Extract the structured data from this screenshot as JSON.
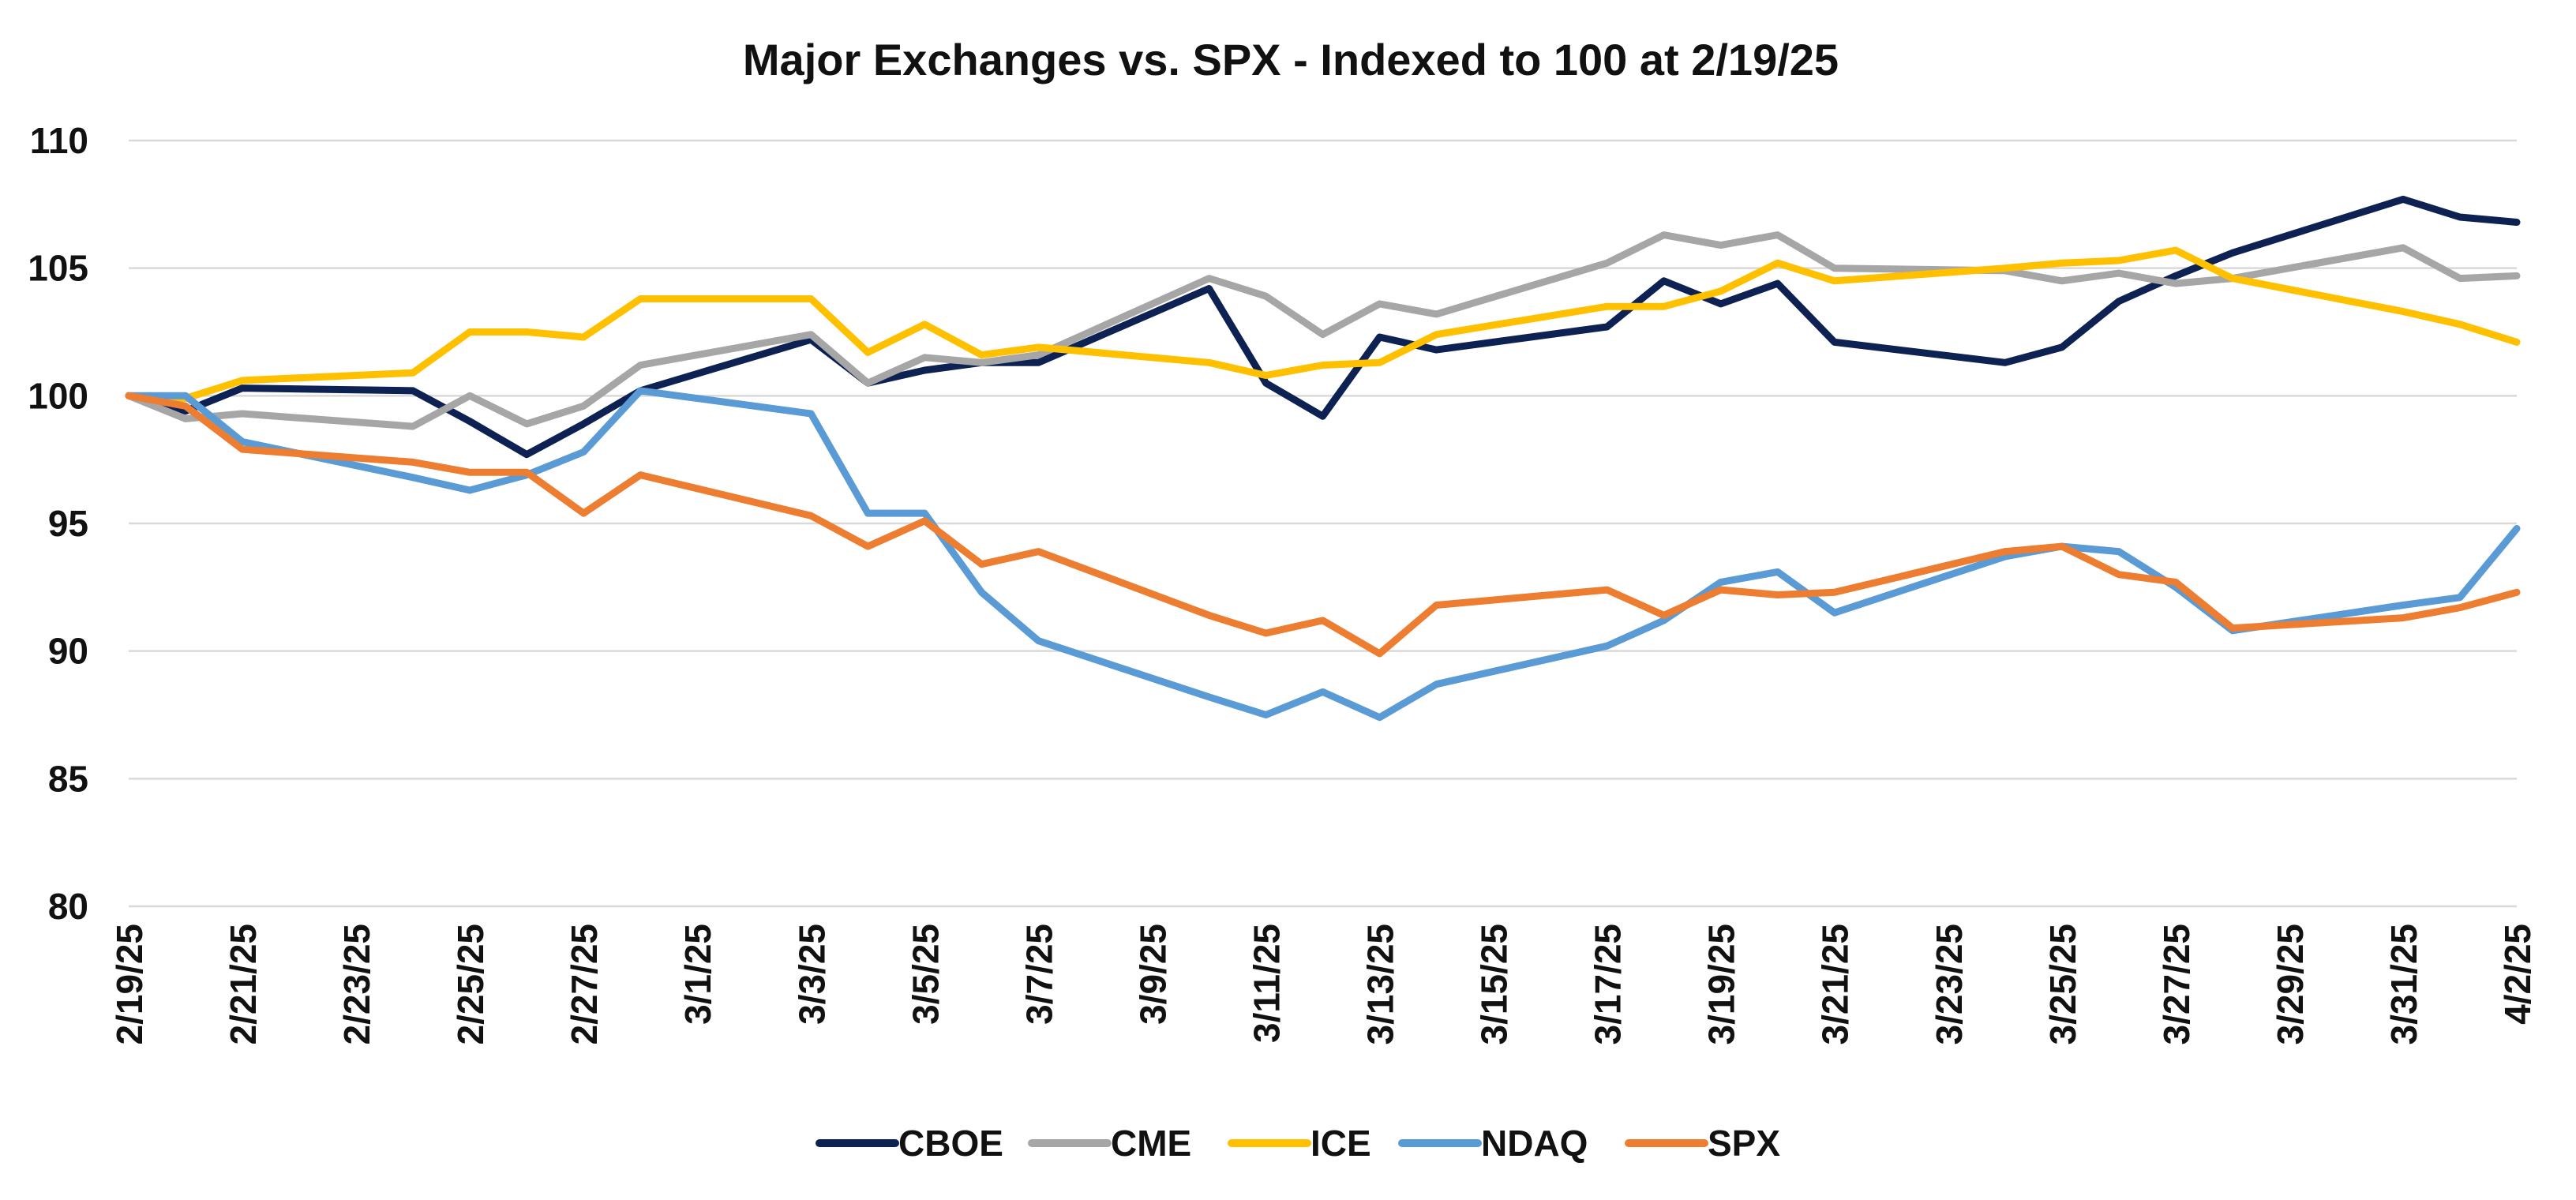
{
  "chart_data": {
    "type": "line",
    "title": "Major Exchanges vs. SPX - Indexed to 100 at 2/19/25",
    "xlabel": "",
    "ylabel": "",
    "ylim": [
      80,
      110
    ],
    "y_ticks": [
      80,
      85,
      90,
      95,
      100,
      105,
      110
    ],
    "grid": true,
    "legend_position": "bottom",
    "x_tick_labels": [
      "2/19/25",
      "2/21/25",
      "2/23/25",
      "2/25/25",
      "2/27/25",
      "3/1/25",
      "3/3/25",
      "3/5/25",
      "3/7/25",
      "3/9/25",
      "3/11/25",
      "3/13/25",
      "3/15/25",
      "3/17/25",
      "3/19/25",
      "3/21/25",
      "3/23/25",
      "3/25/25",
      "3/27/25",
      "3/29/25",
      "3/31/25",
      "4/2/25"
    ],
    "x": [
      "2/19/25",
      "2/20/25",
      "2/21/25",
      "2/24/25",
      "2/25/25",
      "2/26/25",
      "2/27/25",
      "2/28/25",
      "3/3/25",
      "3/4/25",
      "3/5/25",
      "3/6/25",
      "3/7/25",
      "3/10/25",
      "3/11/25",
      "3/12/25",
      "3/13/25",
      "3/14/25",
      "3/17/25",
      "3/18/25",
      "3/19/25",
      "3/20/25",
      "3/21/25",
      "3/24/25",
      "3/25/25",
      "3/26/25",
      "3/27/25",
      "3/28/25",
      "3/31/25",
      "4/1/25",
      "4/2/25"
    ],
    "series": [
      {
        "name": "CBOE",
        "color": "#0d2152",
        "values": [
          100.0,
          99.4,
          100.3,
          100.2,
          99.0,
          97.7,
          98.9,
          100.2,
          102.2,
          100.5,
          101.0,
          101.3,
          101.3,
          104.2,
          100.5,
          99.2,
          102.3,
          101.8,
          102.7,
          104.5,
          103.6,
          104.4,
          102.1,
          101.3,
          101.9,
          103.7,
          104.7,
          105.6,
          107.7,
          107.0,
          106.8
        ]
      },
      {
        "name": "CME",
        "color": "#a6a6a6",
        "values": [
          100.0,
          99.1,
          99.3,
          98.8,
          100.0,
          98.9,
          99.6,
          101.2,
          102.4,
          100.5,
          101.5,
          101.3,
          101.6,
          104.6,
          103.9,
          102.4,
          103.6,
          103.2,
          105.2,
          106.3,
          105.9,
          106.3,
          105.0,
          104.9,
          104.5,
          104.8,
          104.4,
          104.6,
          105.8,
          104.6,
          104.7
        ]
      },
      {
        "name": "ICE",
        "color": "#ffc000",
        "values": [
          100.0,
          99.9,
          100.6,
          100.9,
          102.5,
          102.5,
          102.3,
          103.8,
          103.8,
          101.7,
          102.8,
          101.6,
          101.9,
          101.3,
          100.8,
          101.2,
          101.3,
          102.4,
          103.5,
          103.5,
          104.1,
          105.2,
          104.5,
          105.0,
          105.2,
          105.3,
          105.7,
          104.6,
          103.3,
          102.8,
          102.1
        ]
      },
      {
        "name": "NDAQ",
        "color": "#5b9bd5",
        "values": [
          100.0,
          100.0,
          98.2,
          96.8,
          96.3,
          96.9,
          97.8,
          100.2,
          99.3,
          95.4,
          95.4,
          92.3,
          90.4,
          88.2,
          87.5,
          88.4,
          87.4,
          88.7,
          90.2,
          91.2,
          92.7,
          93.1,
          91.5,
          93.7,
          94.1,
          93.9,
          92.5,
          90.8,
          91.8,
          92.1,
          94.8
        ]
      },
      {
        "name": "SPX",
        "color": "#ed7d31",
        "values": [
          100.0,
          99.6,
          97.9,
          97.4,
          97.0,
          97.0,
          95.4,
          96.9,
          95.3,
          94.1,
          95.1,
          93.4,
          93.9,
          91.4,
          90.7,
          91.2,
          89.9,
          91.8,
          92.4,
          91.4,
          92.4,
          92.2,
          92.3,
          93.9,
          94.1,
          93.0,
          92.7,
          90.9,
          91.3,
          91.7,
          92.3
        ]
      }
    ]
  }
}
